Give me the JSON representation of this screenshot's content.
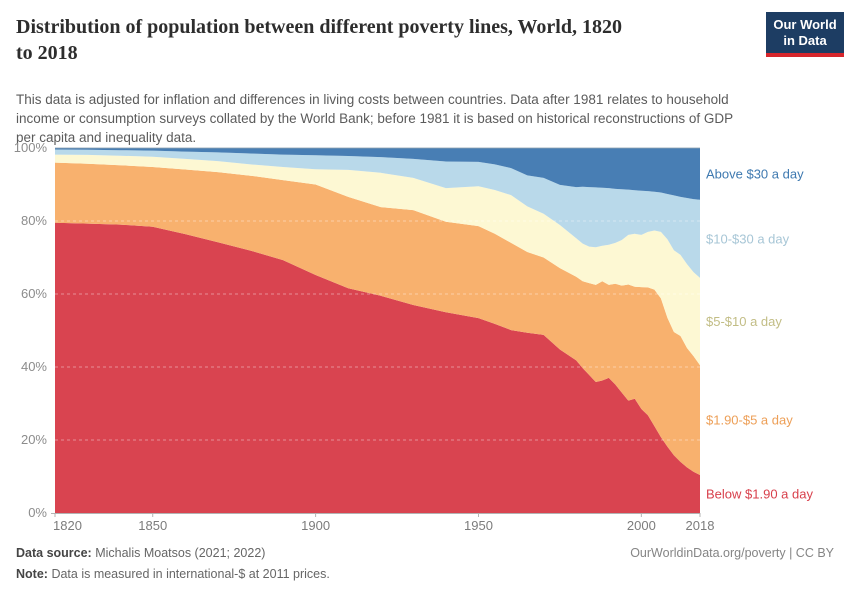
{
  "header": {
    "title_lines": [
      "Distribution of population between different poverty lines, World, 1820",
      "to 2018"
    ],
    "subtitle_lines": [
      "This data is adjusted for inflation and differences in living costs between countries. Data after 1981 relates to household",
      "income or consumption surveys collated by the World Bank; before 1981 it is based on historical reconstructions of GDP",
      "per capita and inequality data."
    ],
    "logo": {
      "line1": "Our World",
      "line2": "in Data"
    }
  },
  "chart_data": {
    "type": "area",
    "stacked": true,
    "title": "Distribution of population between different poverty lines, World, 1820 to 2018",
    "subtitle": "This data is adjusted for inflation and differences in living costs between countries. Data after 1981 relates to household income or consumption surveys collated by the World Bank; before 1981 it is based on historical reconstructions of GDP per capita and inequality data.",
    "unit": "%",
    "xlim": [
      1820,
      2018
    ],
    "ylim": [
      0,
      100
    ],
    "grid": true,
    "legend_position": "right",
    "x_ticks": [
      "1820",
      "1850",
      "1900",
      "1950",
      "2000",
      "2018"
    ],
    "y_ticks": [
      "0%",
      "20%",
      "40%",
      "60%",
      "80%",
      "100%"
    ],
    "x": [
      1820,
      1830,
      1840,
      1850,
      1860,
      1870,
      1880,
      1890,
      1900,
      1910,
      1920,
      1930,
      1940,
      1950,
      1955,
      1960,
      1965,
      1970,
      1975,
      1980,
      1982,
      1984,
      1986,
      1988,
      1990,
      1992,
      1994,
      1996,
      1998,
      2000,
      2002,
      2004,
      2006,
      2008,
      2010,
      2012,
      2014,
      2016,
      2018
    ],
    "series": [
      {
        "id": "below-1-90",
        "name": "Below $1.90 a day",
        "color": "#d94450",
        "label_color": "#d8404c",
        "values": [
          79.5,
          79.3,
          79.0,
          78.4,
          76.4,
          74.2,
          71.9,
          69.3,
          65.2,
          61.6,
          59.5,
          57.0,
          55.0,
          53.4,
          51.8,
          50.1,
          49.4,
          48.8,
          44.8,
          41.8,
          39.7,
          37.8,
          35.9,
          36.3,
          37.0,
          35.2,
          33.0,
          30.8,
          31.3,
          28.5,
          26.8,
          23.8,
          20.8,
          18.2,
          15.8,
          14.0,
          12.5,
          11.3,
          10.4
        ]
      },
      {
        "id": "1-90-to-5",
        "name": "$1.90-$5 a day",
        "color": "#f8b16e",
        "label_color": "#ed9f57",
        "values": [
          16.5,
          16.4,
          16.3,
          16.4,
          17.7,
          19.2,
          20.5,
          21.9,
          24.8,
          25.0,
          24.3,
          26.0,
          24.8,
          25.2,
          24.7,
          23.9,
          22.1,
          21.2,
          22.3,
          22.9,
          23.8,
          25.2,
          26.6,
          27.2,
          25.5,
          27.6,
          29.3,
          31.8,
          30.7,
          33.4,
          35.0,
          37.4,
          38.0,
          35.3,
          33.8,
          34.5,
          32.7,
          31.7,
          30.1
        ]
      },
      {
        "id": "5-to-10",
        "name": "$5-$10 a day",
        "color": "#fdf8d3",
        "label_color": "#c2bd85",
        "values": [
          2.2,
          2.4,
          2.6,
          2.8,
          2.9,
          3.0,
          3.1,
          3.6,
          4.2,
          7.4,
          9.4,
          8.8,
          9.2,
          10.9,
          12.0,
          13.1,
          12.5,
          12.0,
          11.8,
          10.6,
          10.3,
          10.0,
          10.3,
          9.7,
          11.0,
          11.2,
          12.5,
          13.6,
          14.5,
          14.3,
          15.2,
          16.2,
          18.2,
          21.5,
          22.4,
          22.2,
          23.0,
          23.0,
          23.9
        ]
      },
      {
        "id": "10-to-30",
        "name": "$10-$30 a day",
        "color": "#b9d9ea",
        "label_color": "#a7c6d6",
        "values": [
          1.4,
          1.4,
          1.5,
          1.7,
          2.0,
          2.4,
          3.0,
          3.4,
          3.8,
          3.8,
          4.3,
          5.2,
          7.3,
          6.7,
          7.0,
          7.4,
          8.5,
          9.8,
          11.0,
          14.0,
          15.6,
          16.3,
          16.4,
          15.9,
          15.5,
          14.8,
          13.9,
          12.4,
          11.9,
          12.1,
          11.2,
          10.6,
          10.8,
          12.4,
          15.0,
          15.9,
          18.1,
          20.0,
          21.4
        ]
      },
      {
        "id": "above-30",
        "name": "Above $30 a day",
        "color": "#487eb4",
        "label_color": "#3e79b0",
        "values": [
          0.4,
          0.5,
          0.6,
          0.7,
          1.0,
          1.2,
          1.5,
          1.8,
          2.0,
          2.2,
          2.5,
          3.0,
          3.7,
          3.8,
          4.5,
          5.5,
          7.5,
          8.2,
          10.1,
          10.7,
          10.6,
          10.7,
          10.8,
          10.9,
          11.0,
          11.2,
          11.3,
          11.4,
          11.6,
          11.7,
          11.8,
          12.0,
          12.2,
          12.6,
          13.0,
          13.4,
          13.7,
          14.0,
          14.2
        ]
      }
    ]
  },
  "footer": {
    "source_label": "Data source:",
    "source_value": "Michalis Moatsos (2021; 2022)",
    "note_label": "Note:",
    "note_value": "Data is measured in international-$ at 2011 prices.",
    "link": "OurWorldinData.org/poverty | CC BY"
  }
}
